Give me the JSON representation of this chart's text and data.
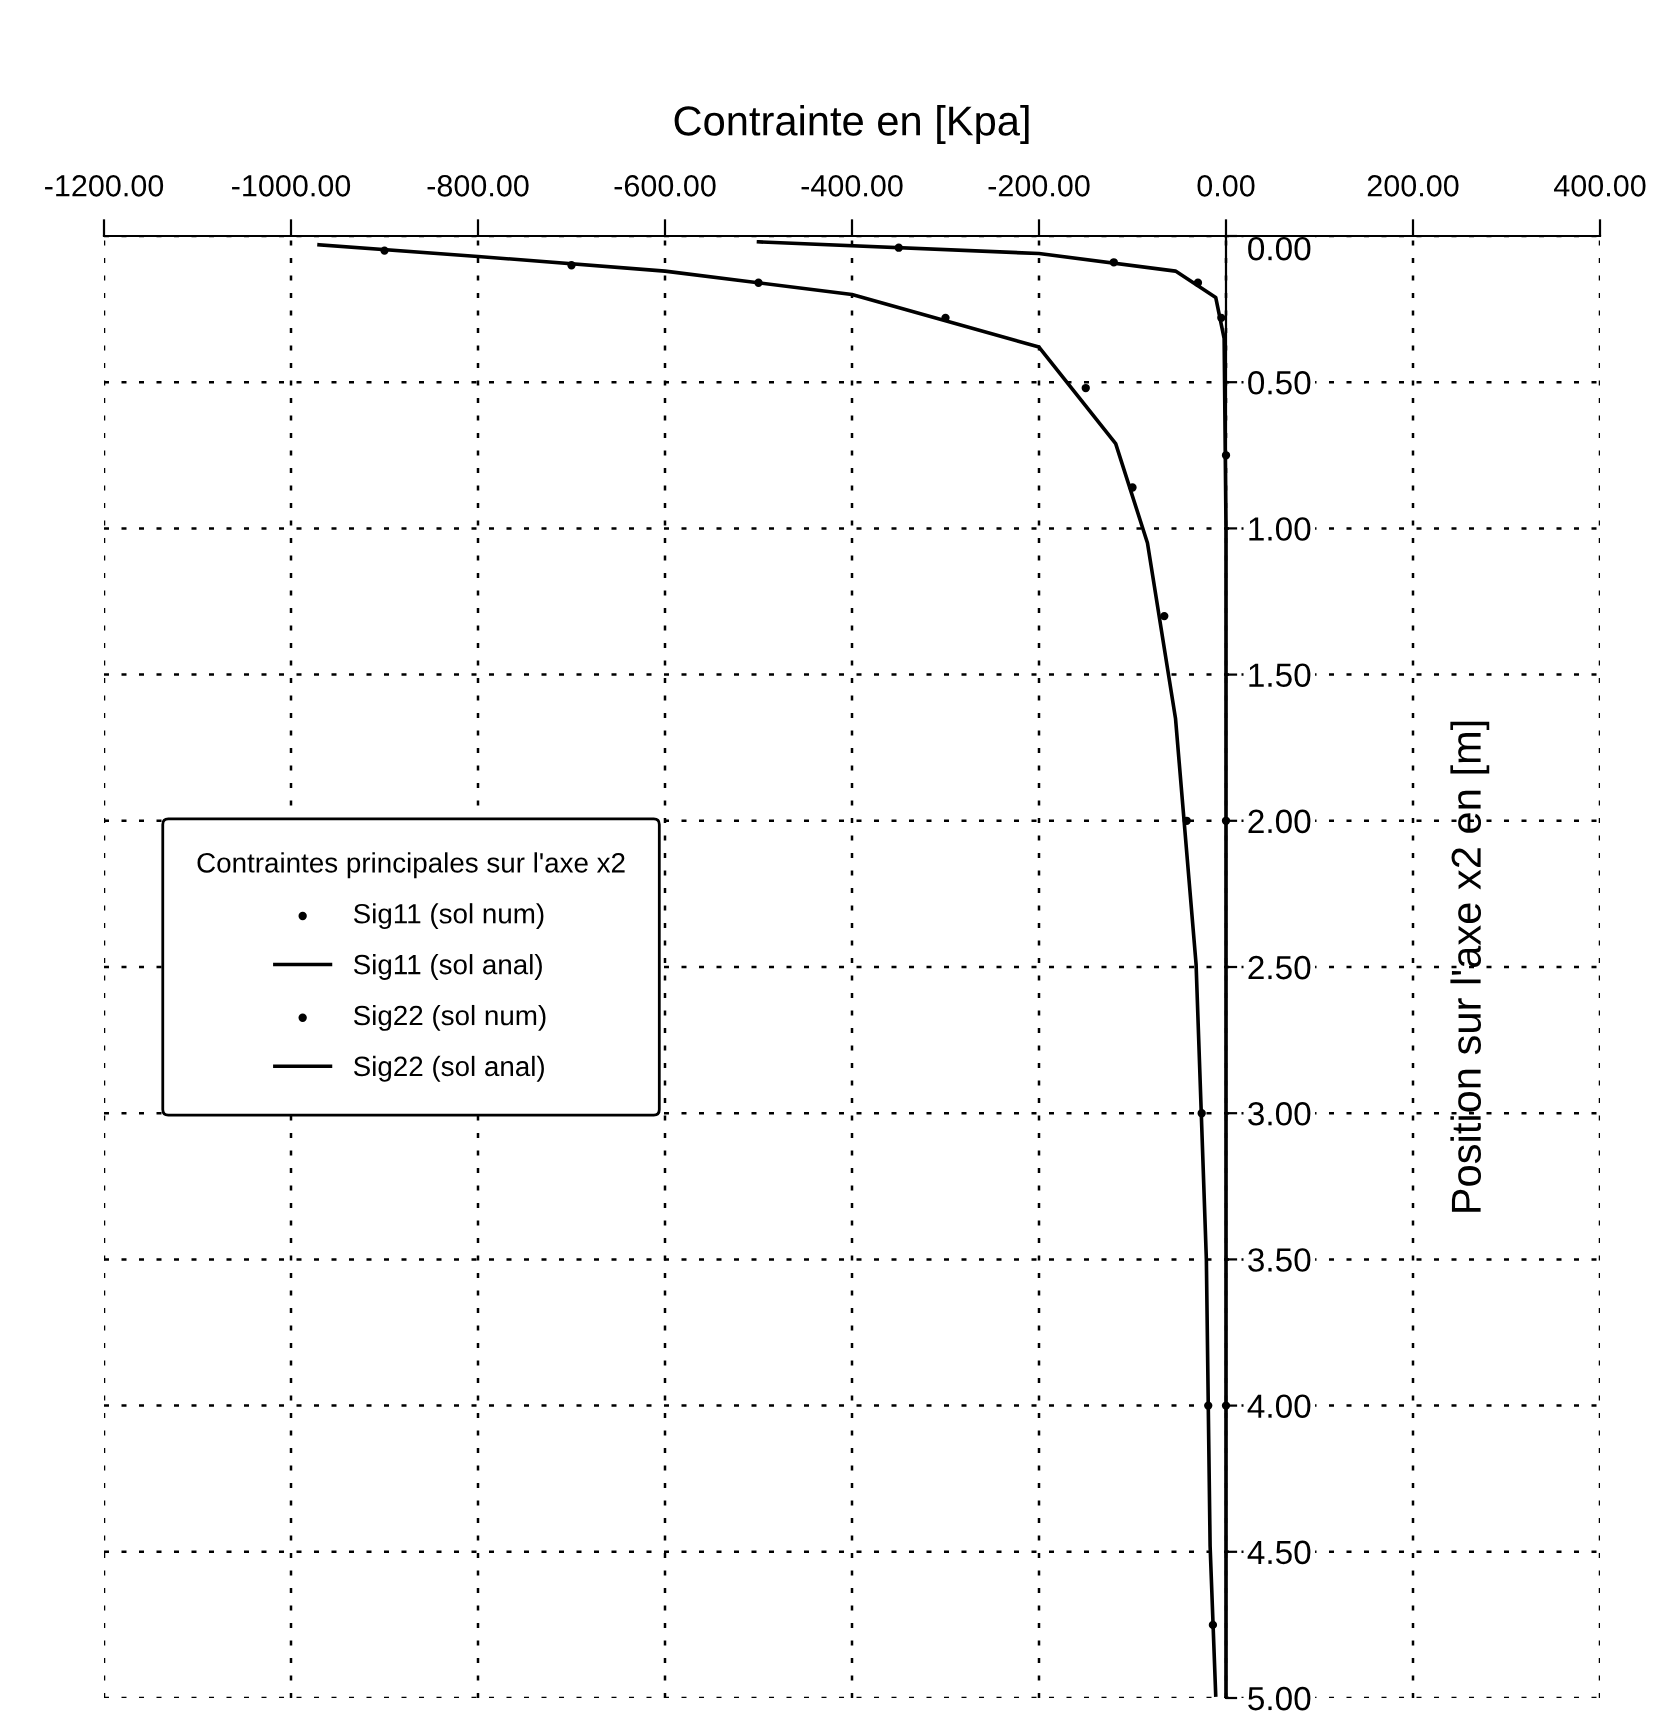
{
  "chart_data": {
    "type": "line",
    "xlabel": "Contrainte en [Kpa]",
    "ylabel": "Position sur l'axe x2 en [m]",
    "legend_title": "Contraintes principales sur l'axe x2",
    "xlim": [
      -1200,
      400
    ],
    "ylim": [
      5,
      0
    ],
    "xticks": [
      {
        "value": -1200,
        "label": "-1200.00"
      },
      {
        "value": -1000,
        "label": "-1000.00"
      },
      {
        "value": -800,
        "label": "-800.00"
      },
      {
        "value": -600,
        "label": "-600.00"
      },
      {
        "value": -400,
        "label": "-400.00"
      },
      {
        "value": -200,
        "label": "-200.00"
      },
      {
        "value": 0,
        "label": "0.00"
      },
      {
        "value": 200,
        "label": "200.00"
      },
      {
        "value": 400,
        "label": "400.00"
      }
    ],
    "yticks": [
      {
        "value": 0,
        "label": "0.00"
      },
      {
        "value": 0.5,
        "label": "0.50"
      },
      {
        "value": 1,
        "label": "1.00"
      },
      {
        "value": 1.5,
        "label": "1.50"
      },
      {
        "value": 2,
        "label": "2.00"
      },
      {
        "value": 2.5,
        "label": "2.50"
      },
      {
        "value": 3,
        "label": "3.00"
      },
      {
        "value": 3.5,
        "label": "3.50"
      },
      {
        "value": 4,
        "label": "4.00"
      },
      {
        "value": 4.5,
        "label": "4.50"
      },
      {
        "value": 5,
        "label": "5.00"
      }
    ],
    "grid": true,
    "legend": "center left",
    "series": [
      {
        "name": "Sig11 (sol num)",
        "type": "scatter",
        "color": "#000000",
        "marker": "circle",
        "x": [
          -900,
          -700,
          -500,
          -300,
          -150,
          -100,
          -66,
          -42,
          -26,
          -19,
          -14
        ],
        "values": [
          0.05,
          0.1,
          0.16,
          0.28,
          0.52,
          0.86,
          1.3,
          2.0,
          3.0,
          4.0,
          4.75
        ]
      },
      {
        "name": "Sig11 (sol anal)",
        "color": "#000000",
        "marker": "none",
        "line_style": "solid",
        "x": [
          -970,
          -800,
          -600,
          -400,
          -200,
          -118,
          -84,
          -54,
          -32,
          -21,
          -17,
          -11
        ],
        "values": [
          0.03,
          0.07,
          0.12,
          0.2,
          0.38,
          0.71,
          1.05,
          1.65,
          2.49,
          3.5,
          4.48,
          4.99
        ]
      },
      {
        "name": "Sig22 (sol num)",
        "type": "scatter",
        "color": "#000000",
        "marker": "circle",
        "x": [
          -350,
          -120,
          -30,
          -5,
          0,
          0,
          0
        ],
        "values": [
          0.04,
          0.09,
          0.16,
          0.28,
          0.75,
          2.0,
          4.0
        ]
      },
      {
        "name": "Sig22 (sol anal)",
        "color": "#000000",
        "marker": "none",
        "line_style": "solid",
        "x": [
          -500,
          -200,
          -54,
          -11,
          -2,
          0,
          0,
          0
        ],
        "values": [
          0.02,
          0.06,
          0.12,
          0.21,
          0.35,
          1,
          3,
          5
        ]
      }
    ]
  }
}
